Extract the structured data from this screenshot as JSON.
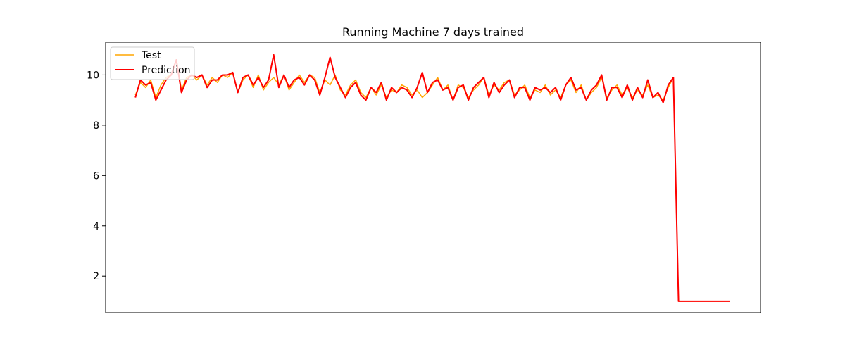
{
  "chart_data": {
    "type": "line",
    "title": "Running Machine 7 days trained",
    "xlabel": "",
    "ylabel": "",
    "x_ticks_visible": false,
    "ylim": [
      0.55,
      11.3
    ],
    "xlim": [
      -5.8,
      122
    ],
    "y_ticks": [
      2,
      4,
      6,
      8,
      10
    ],
    "grid": false,
    "legend": {
      "placement": "top-left",
      "entries": [
        "Test",
        "Prediction"
      ]
    },
    "colors": {
      "Test": "#ffa500",
      "Prediction": "#ff0000"
    },
    "series": [
      {
        "name": "Test",
        "x": [
          0,
          1,
          2,
          3,
          4,
          5,
          6,
          7,
          8,
          9,
          10,
          11,
          12,
          13,
          14,
          15,
          16,
          17,
          18,
          19,
          20,
          21,
          22,
          23,
          24,
          25,
          26,
          27,
          28,
          29,
          30,
          31,
          32,
          33,
          34,
          35,
          36,
          37,
          38,
          39,
          40,
          41,
          42,
          43,
          44,
          45,
          46,
          47,
          48,
          49,
          50,
          51,
          52,
          53,
          54,
          55,
          56,
          57,
          58,
          59,
          60,
          61,
          62,
          63,
          64,
          65,
          66,
          67,
          68,
          69,
          70,
          71,
          72,
          73,
          74,
          75,
          76,
          77,
          78,
          79,
          80,
          81,
          82,
          83,
          84,
          85,
          86,
          87,
          88,
          89,
          90,
          91,
          92,
          93,
          94,
          95,
          96,
          97,
          98,
          99,
          100,
          101,
          102,
          103,
          104,
          105,
          106,
          107,
          108,
          109,
          110,
          111,
          112,
          113,
          114,
          115,
          116
        ],
        "values": [
          9.2,
          9.7,
          9.5,
          9.8,
          9.1,
          9.6,
          9.9,
          10.0,
          10.6,
          9.4,
          9.9,
          10.0,
          9.8,
          10.0,
          9.6,
          9.9,
          9.7,
          10.0,
          9.9,
          10.1,
          9.3,
          9.8,
          10.0,
          9.5,
          10.0,
          9.4,
          9.7,
          9.9,
          9.6,
          10.0,
          9.4,
          9.7,
          10.0,
          9.7,
          10.0,
          9.9,
          9.3,
          9.8,
          9.6,
          10.0,
          9.4,
          9.2,
          9.6,
          9.8,
          9.3,
          9.1,
          9.5,
          9.2,
          9.6,
          9.1,
          9.4,
          9.3,
          9.6,
          9.5,
          9.2,
          9.4,
          9.1,
          9.3,
          9.6,
          9.9,
          9.4,
          9.6,
          9.0,
          9.6,
          9.5,
          9.1,
          9.4,
          9.6,
          9.9,
          9.2,
          9.6,
          9.4,
          9.7,
          9.8,
          9.2,
          9.4,
          9.6,
          9.1,
          9.4,
          9.3,
          9.6,
          9.2,
          9.4,
          9.1,
          9.6,
          9.8,
          9.3,
          9.6,
          9.0,
          9.3,
          9.5,
          9.9,
          9.1,
          9.4,
          9.6,
          9.2,
          9.5,
          9.1,
          9.4,
          9.2,
          9.6,
          9.1,
          9.2,
          9.0,
          9.5,
          9.9,
          1.0,
          1.0,
          1.0,
          1.0,
          1.0,
          1.0,
          1.0,
          1.0,
          1.0,
          1.0,
          1.0
        ]
      },
      {
        "name": "Prediction",
        "x": [
          0,
          1,
          2,
          3,
          4,
          5,
          6,
          7,
          8,
          9,
          10,
          11,
          12,
          13,
          14,
          15,
          16,
          17,
          18,
          19,
          20,
          21,
          22,
          23,
          24,
          25,
          26,
          27,
          28,
          29,
          30,
          31,
          32,
          33,
          34,
          35,
          36,
          37,
          38,
          39,
          40,
          41,
          42,
          43,
          44,
          45,
          46,
          47,
          48,
          49,
          50,
          51,
          52,
          53,
          54,
          55,
          56,
          57,
          58,
          59,
          60,
          61,
          62,
          63,
          64,
          65,
          66,
          67,
          68,
          69,
          70,
          71,
          72,
          73,
          74,
          75,
          76,
          77,
          78,
          79,
          80,
          81,
          82,
          83,
          84,
          85,
          86,
          87,
          88,
          89,
          90,
          91,
          92,
          93,
          94,
          95,
          96,
          97,
          98,
          99,
          100,
          101,
          102,
          103,
          104,
          105,
          106,
          107,
          108,
          109,
          110,
          111,
          112,
          113,
          114,
          115,
          116
        ],
        "values": [
          9.1,
          9.8,
          9.6,
          9.7,
          9.0,
          9.4,
          9.8,
          10.0,
          10.6,
          9.3,
          9.8,
          10.0,
          9.9,
          10.0,
          9.5,
          9.8,
          9.8,
          10.0,
          10.0,
          10.1,
          9.3,
          9.9,
          10.0,
          9.6,
          9.9,
          9.5,
          9.8,
          10.8,
          9.5,
          10.0,
          9.5,
          9.8,
          9.9,
          9.6,
          10.0,
          9.8,
          9.2,
          9.9,
          10.7,
          9.9,
          9.5,
          9.1,
          9.5,
          9.7,
          9.2,
          9.0,
          9.5,
          9.3,
          9.7,
          9.0,
          9.5,
          9.3,
          9.5,
          9.4,
          9.1,
          9.5,
          10.1,
          9.3,
          9.7,
          9.8,
          9.4,
          9.5,
          9.0,
          9.5,
          9.6,
          9.0,
          9.5,
          9.7,
          9.9,
          9.1,
          9.7,
          9.3,
          9.6,
          9.8,
          9.1,
          9.5,
          9.5,
          9.0,
          9.5,
          9.4,
          9.5,
          9.3,
          9.5,
          9.0,
          9.6,
          9.9,
          9.4,
          9.5,
          9.0,
          9.4,
          9.6,
          10.0,
          9.0,
          9.5,
          9.5,
          9.1,
          9.6,
          9.0,
          9.5,
          9.1,
          9.8,
          9.1,
          9.3,
          8.9,
          9.6,
          9.9,
          1.0,
          1.0,
          1.0,
          1.0,
          1.0,
          1.0,
          1.0,
          1.0,
          1.0,
          1.0,
          1.0
        ]
      }
    ]
  }
}
